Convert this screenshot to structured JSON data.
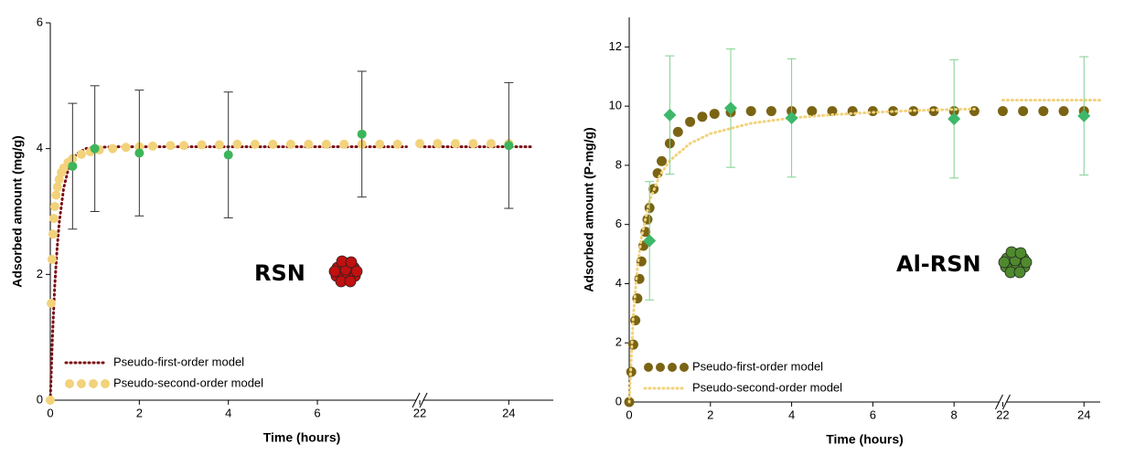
{
  "chart_data": [
    {
      "type": "line",
      "x_label": "Time (hours)",
      "y_label": "Adsorbed amount (mg/g)",
      "xlim": [
        0,
        25
      ],
      "xbreak": [
        8.3,
        22
      ],
      "xticks": [
        0,
        2,
        4,
        6,
        22,
        24
      ],
      "ylim": [
        0,
        6
      ],
      "yticks": [
        0,
        2,
        4,
        6
      ],
      "legend": "lower left",
      "annotation": {
        "text": "RSN",
        "color": "#c00000",
        "icon_color": "#c01010"
      },
      "series": [
        {
          "name": "Pseudo-first-order model",
          "style": "dotted-line",
          "color": "#7b0c12",
          "x": [
            0,
            0.05,
            0.1,
            0.15,
            0.2,
            0.3,
            0.4,
            0.5,
            0.6,
            0.8,
            1,
            1.5,
            2,
            3,
            4,
            6,
            8,
            22,
            23,
            24,
            24.5
          ],
          "values": [
            0,
            1.04,
            1.82,
            2.39,
            2.82,
            3.37,
            3.66,
            3.83,
            3.92,
            4.0,
            4.02,
            4.03,
            4.03,
            4.03,
            4.03,
            4.03,
            4.03,
            4.03,
            4.03,
            4.03,
            4.03
          ]
        },
        {
          "name": "Pseudo-second-order model",
          "style": "dots",
          "color": "#f2d27a",
          "x": [
            0,
            0.02,
            0.04,
            0.06,
            0.08,
            0.1,
            0.13,
            0.16,
            0.2,
            0.25,
            0.3,
            0.4,
            0.5,
            0.7,
            0.9,
            1.1,
            1.4,
            1.7,
            2,
            2.3,
            2.7,
            3,
            3.4,
            3.8,
            4.2,
            4.6,
            5,
            5.4,
            5.8,
            6.2,
            6.6,
            7,
            7.4,
            7.8,
            22,
            22.4,
            22.8,
            23.2,
            23.6,
            24
          ],
          "values": [
            0,
            1.54,
            2.24,
            2.64,
            2.89,
            3.08,
            3.26,
            3.39,
            3.51,
            3.62,
            3.69,
            3.78,
            3.84,
            3.91,
            3.95,
            3.98,
            4.0,
            4.02,
            4.03,
            4.04,
            4.05,
            4.05,
            4.06,
            4.06,
            4.07,
            4.07,
            4.07,
            4.07,
            4.07,
            4.07,
            4.07,
            4.07,
            4.07,
            4.07,
            4.08,
            4.08,
            4.08,
            4.08,
            4.08,
            4.08
          ]
        },
        {
          "style": "markers",
          "marker": "circle",
          "color": "#3cb55a",
          "error_color": "#333333",
          "x": [
            0.5,
            1,
            2,
            4,
            7,
            24
          ],
          "values": [
            3.72,
            4.0,
            3.93,
            3.9,
            4.23,
            4.05
          ],
          "errors": [
            1.0,
            1.0,
            1.0,
            1.0,
            1.0,
            1.0
          ]
        }
      ]
    },
    {
      "type": "line",
      "x_label": "Time (hours)",
      "y_label": "Adsorbed amount (P-mg/g)",
      "xlim": [
        0,
        24.4
      ],
      "xbreak": [
        9.2,
        22
      ],
      "xticks": [
        0,
        2,
        4,
        6,
        8,
        22,
        24
      ],
      "ylim": [
        0,
        13
      ],
      "yticks": [
        0,
        2,
        4,
        6,
        8,
        10,
        12
      ],
      "legend": "lower left",
      "annotation": {
        "text": "Al-RSN",
        "color": "#548235",
        "icon_color": "#4f8a2e"
      },
      "series": [
        {
          "name": "Pseudo-first-order model",
          "style": "dots",
          "color": "#7a6414",
          "x": [
            0,
            0.05,
            0.1,
            0.15,
            0.2,
            0.25,
            0.3,
            0.35,
            0.4,
            0.45,
            0.5,
            0.6,
            0.7,
            0.8,
            1,
            1.2,
            1.5,
            1.8,
            2.1,
            2.5,
            3,
            3.5,
            4,
            4.5,
            5,
            5.5,
            6,
            6.5,
            7,
            7.5,
            8,
            8.5,
            22,
            22.5,
            23,
            23.5,
            24
          ],
          "values": [
            0,
            1.02,
            1.94,
            2.76,
            3.5,
            4.16,
            4.75,
            5.28,
            5.75,
            6.17,
            6.56,
            7.2,
            7.73,
            8.14,
            8.74,
            9.13,
            9.47,
            9.64,
            9.74,
            9.79,
            9.83,
            9.83,
            9.83,
            9.83,
            9.83,
            9.83,
            9.83,
            9.83,
            9.83,
            9.83,
            9.83,
            9.83,
            9.83,
            9.83,
            9.83,
            9.83,
            9.83
          ]
        },
        {
          "name": "Pseudo-second-order model",
          "style": "dotted-line",
          "color": "#f2d27a",
          "x": [
            0,
            0.1,
            0.2,
            0.3,
            0.5,
            0.75,
            1,
            1.5,
            2,
            3,
            4,
            5,
            6,
            7,
            8,
            8.5,
            22,
            23,
            24,
            24.4
          ],
          "values": [
            0,
            2.91,
            4.53,
            5.56,
            6.8,
            7.65,
            8.16,
            8.74,
            9.07,
            9.42,
            9.6,
            9.71,
            9.79,
            9.85,
            9.89,
            9.9,
            10.2,
            10.2,
            10.2,
            10.2
          ]
        },
        {
          "style": "markers",
          "marker": "diamond",
          "color": "#3db86a",
          "error_color": "#7fd08f",
          "x": [
            0.5,
            1,
            2.5,
            4,
            8,
            24
          ],
          "values": [
            5.45,
            9.7,
            9.93,
            9.6,
            9.57,
            9.67
          ],
          "errors": [
            2.0,
            2.0,
            2.0,
            2.0,
            2.0,
            2.0
          ]
        }
      ]
    }
  ]
}
